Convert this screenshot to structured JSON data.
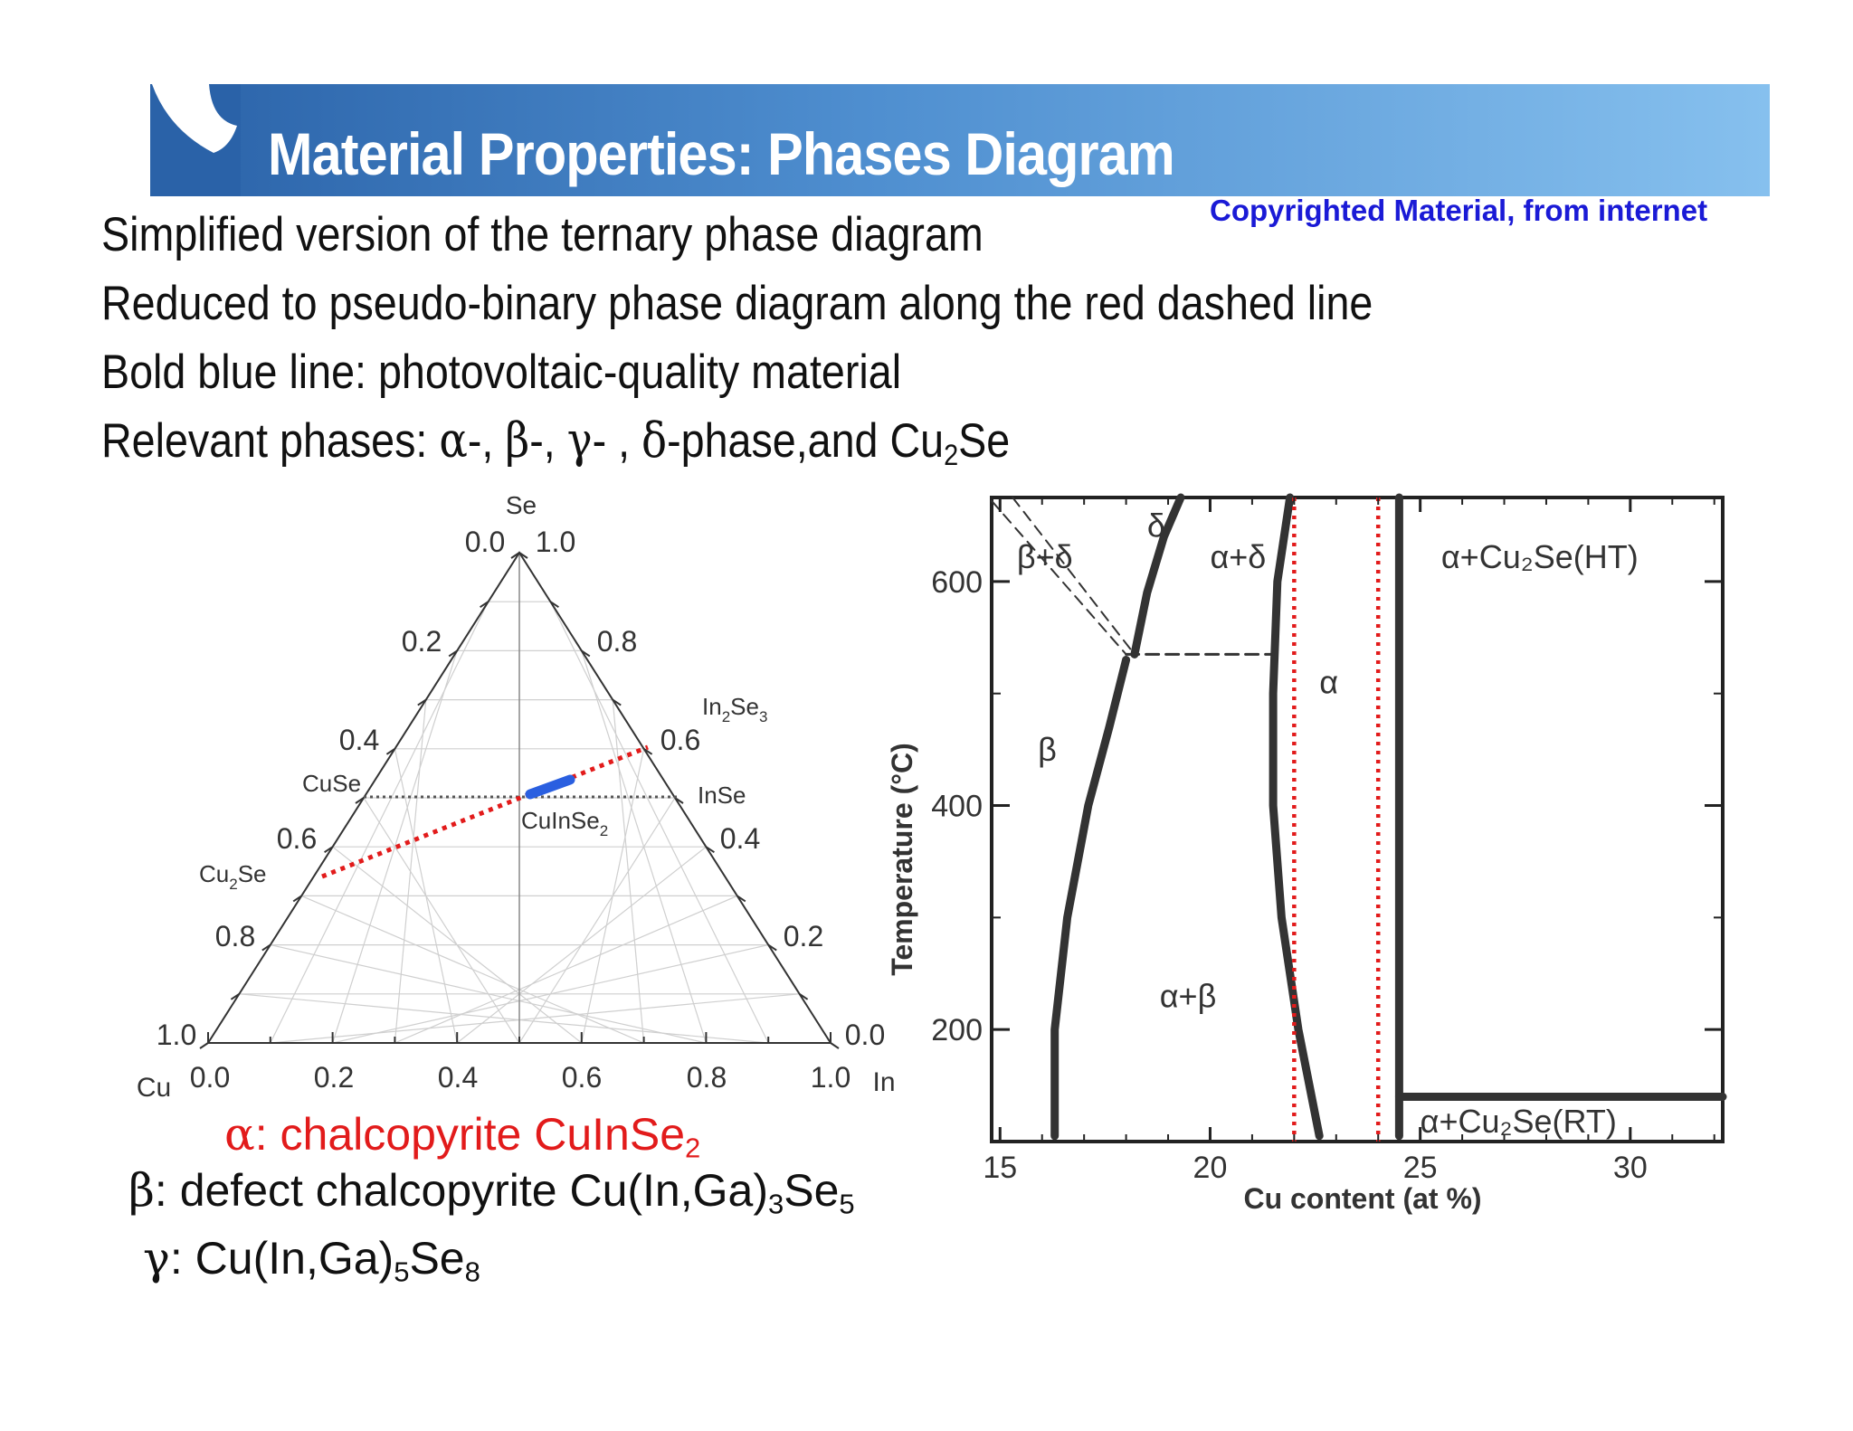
{
  "header": {
    "title": "Material Properties: Phases Diagram",
    "copyright": "Copyrighted Material, from internet",
    "brand_color": "#2a62a8"
  },
  "bullets": {
    "line1": "Simplified version of the ternary phase diagram",
    "line2": "Reduced to pseudo-binary phase diagram along the red dashed line",
    "line3": "Bold blue line: photovoltaic-quality material",
    "line4_prefix": "Relevant phases: ",
    "alpha": "α",
    "sep1": "-, ",
    "beta": "β",
    "sep2": "-, ",
    "gamma": "γ",
    "sep3": "- , ",
    "delta": "δ",
    "line4_suffix": "-phase,and Cu",
    "cu2_sub": "2",
    "se": "Se"
  },
  "legend": {
    "alpha_symbol": "α",
    "alpha_text": ": chalcopyrite CuInSe",
    "alpha_sub": "2",
    "beta_symbol": "β",
    "beta_text": ": defect chalcopyrite Cu(In,Ga)",
    "beta_sub1": "3",
    "beta_se": "Se",
    "beta_sub2": "5",
    "gamma_symbol": "γ",
    "gamma_text": ": Cu(In,Ga)",
    "gamma_sub1": "5",
    "gamma_se": "Se",
    "gamma_sub2": "8",
    "alpha_color": "#e21b1b"
  },
  "ternary": {
    "apex_label": "Se",
    "left_label": "Cu",
    "right_label": "In",
    "apex_ticks": [
      "0.0",
      "1.0"
    ],
    "left_ticks": [
      "0.2",
      "0.4",
      "0.6",
      "0.8",
      "1.0"
    ],
    "right_ticks": [
      "0.8",
      "0.6",
      "0.4",
      "0.2",
      "0.0"
    ],
    "bottom_ticks": [
      "0.0",
      "0.2",
      "0.4",
      "0.6",
      "0.8",
      "1.0"
    ],
    "compounds": {
      "in2se3": "In",
      "in2se3_sub1": "2",
      "in2se3_se": "Se",
      "in2se3_sub2": "3",
      "cuse": "CuSe",
      "inse": "InSe",
      "cuinse2": "CuInSe",
      "cuinse2_sub": "2",
      "cu2se": "Cu",
      "cu2se_sub": "2",
      "cu2se_se": "Se"
    },
    "red_line_color": "#e21b1b",
    "blue_line_color": "#2a5fe0"
  },
  "chart_data": {
    "type": "phase-diagram",
    "xlabel": "Cu content (at %)",
    "ylabel": "Temperature (°C)",
    "x_ticks": [
      "15",
      "20",
      "25",
      "30"
    ],
    "y_ticks": [
      "200",
      "400",
      "600"
    ],
    "xlim": [
      14.8,
      32.2
    ],
    "ylim": [
      100,
      675
    ],
    "region_labels": {
      "delta": "δ",
      "beta_delta": "β+δ",
      "alpha_delta": "α+δ",
      "alpha_cu2se_ht": "α+Cu₂Se(HT)",
      "alpha": "α",
      "beta": "β",
      "alpha_beta": "α+β",
      "alpha_cu2se_rt": "α+Cu₂Se(RT)"
    },
    "boundaries": {
      "beta_left": [
        [
          16.3,
          105
        ],
        [
          16.3,
          200
        ],
        [
          16.6,
          300
        ],
        [
          17.1,
          400
        ],
        [
          17.6,
          470
        ],
        [
          18.0,
          530
        ]
      ],
      "delta_left": [
        [
          18.2,
          535
        ],
        [
          18.5,
          590
        ],
        [
          18.9,
          640
        ],
        [
          19.3,
          675
        ]
      ],
      "alpha_left": [
        [
          22.6,
          105
        ],
        [
          22.1,
          200
        ],
        [
          21.7,
          300
        ],
        [
          21.5,
          400
        ],
        [
          21.5,
          500
        ],
        [
          21.6,
          600
        ],
        [
          21.9,
          675
        ]
      ],
      "eutectoid_T": 535,
      "cu2se_line_x": 24.5,
      "cu2se_transition_T": 140
    },
    "red_dotted_x": [
      22.0,
      24.0
    ]
  }
}
